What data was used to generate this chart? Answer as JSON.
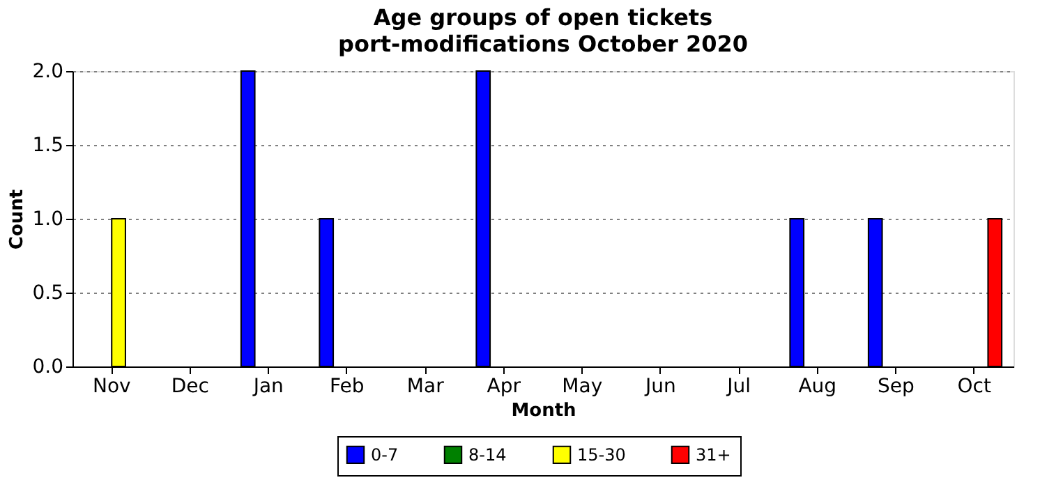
{
  "chart_data": {
    "type": "bar",
    "title": "Age groups of open tickets",
    "subtitle": "port-modifications October 2020",
    "xlabel": "Month",
    "ylabel": "Count",
    "categories": [
      "Nov",
      "Dec",
      "Jan",
      "Feb",
      "Mar",
      "Apr",
      "May",
      "Jun",
      "Jul",
      "Aug",
      "Sep",
      "Oct"
    ],
    "series": [
      {
        "name": "0-7",
        "color": "#0000ff",
        "values": [
          0,
          0,
          2,
          1,
          0,
          2,
          0,
          0,
          0,
          1,
          1,
          0
        ]
      },
      {
        "name": "8-14",
        "color": "#008000",
        "values": [
          0,
          0,
          0,
          0,
          0,
          0,
          0,
          0,
          0,
          0,
          0,
          0
        ]
      },
      {
        "name": "15-30",
        "color": "#ffff00",
        "values": [
          1,
          0,
          0,
          0,
          0,
          0,
          0,
          0,
          0,
          0,
          0,
          0
        ]
      },
      {
        "name": "31+",
        "color": "#ff0000",
        "values": [
          0,
          0,
          0,
          0,
          0,
          0,
          0,
          0,
          0,
          0,
          0,
          1
        ]
      }
    ],
    "ylim": [
      0,
      2
    ],
    "yticks": [
      {
        "value": 0,
        "label": "0.0"
      },
      {
        "value": 0.5,
        "label": "0.5"
      },
      {
        "value": 1,
        "label": "1.0"
      },
      {
        "value": 1.5,
        "label": "1.5"
      },
      {
        "value": 2,
        "label": "2.0"
      }
    ],
    "grid": "y",
    "legend": "bottom"
  }
}
